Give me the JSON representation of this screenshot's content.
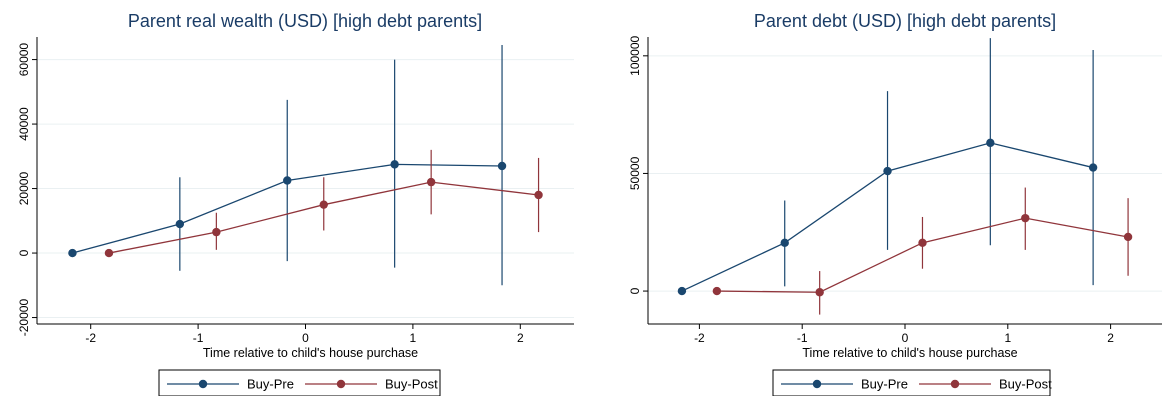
{
  "colors": {
    "buy_pre": "#1a476f",
    "buy_post": "#90353b",
    "grid": "#eaf0f2",
    "axis": "#000000"
  },
  "chart_data": [
    {
      "type": "line",
      "title": "Parent real wealth (USD) [high debt parents]",
      "xlabel": "Time relative to child's house purchase",
      "ylabel": "",
      "xlim": [
        -2.5,
        2.5
      ],
      "ylim": [
        -22000,
        67000
      ],
      "xticks": [
        -2,
        -1,
        0,
        1,
        2
      ],
      "xtick_labels": [
        "-2",
        "-1",
        "0",
        "1",
        "2"
      ],
      "yticks": [
        -20000,
        0,
        20000,
        40000,
        60000
      ],
      "ytick_labels": [
        "-20000",
        "0",
        "20000",
        "40000",
        "60000"
      ],
      "grid": true,
      "legend": "bottom",
      "series": [
        {
          "name": "Buy-Pre",
          "color": "#1a476f",
          "x": [
            -2.17,
            -1.17,
            -0.17,
            0.83,
            1.83
          ],
          "y": [
            0,
            9000,
            22500,
            27500,
            27000
          ],
          "ci_low": [
            0,
            -5500,
            -2500,
            -4500,
            -10000
          ],
          "ci_high": [
            0,
            23500,
            47500,
            60000,
            64500
          ]
        },
        {
          "name": "Buy-Post",
          "color": "#90353b",
          "x": [
            -1.83,
            -0.83,
            0.17,
            1.17,
            2.17
          ],
          "y": [
            0,
            6500,
            15000,
            22000,
            18000
          ],
          "ci_low": [
            0,
            1000,
            7000,
            12000,
            6500
          ],
          "ci_high": [
            0,
            12500,
            23500,
            32000,
            29500
          ]
        }
      ]
    },
    {
      "type": "line",
      "title": "Parent debt (USD) [high debt parents]",
      "xlabel": "Time relative to child's house purchase",
      "ylabel": "",
      "xlim": [
        -2.5,
        2.5
      ],
      "ylim": [
        -14000,
        108000
      ],
      "xticks": [
        -2,
        -1,
        0,
        1,
        2
      ],
      "xtick_labels": [
        "-2",
        "-1",
        "0",
        "1",
        "2"
      ],
      "yticks": [
        0,
        50000,
        100000
      ],
      "ytick_labels": [
        "0",
        "50000",
        "100000"
      ],
      "grid": true,
      "legend": "bottom",
      "series": [
        {
          "name": "Buy-Pre",
          "color": "#1a476f",
          "x": [
            -2.17,
            -1.17,
            -0.17,
            0.83,
            1.83
          ],
          "y": [
            0,
            20500,
            51000,
            63000,
            52500
          ],
          "ci_low": [
            0,
            2000,
            17500,
            19500,
            2500
          ],
          "ci_high": [
            0,
            38500,
            85000,
            107500,
            102500
          ]
        },
        {
          "name": "Buy-Post",
          "color": "#90353b",
          "x": [
            -1.83,
            -0.83,
            0.17,
            1.17,
            2.17
          ],
          "y": [
            0,
            -500,
            20500,
            31000,
            23000
          ],
          "ci_low": [
            0,
            -10000,
            9500,
            17500,
            6500
          ],
          "ci_high": [
            0,
            8500,
            31500,
            44000,
            39500
          ]
        }
      ]
    }
  ]
}
